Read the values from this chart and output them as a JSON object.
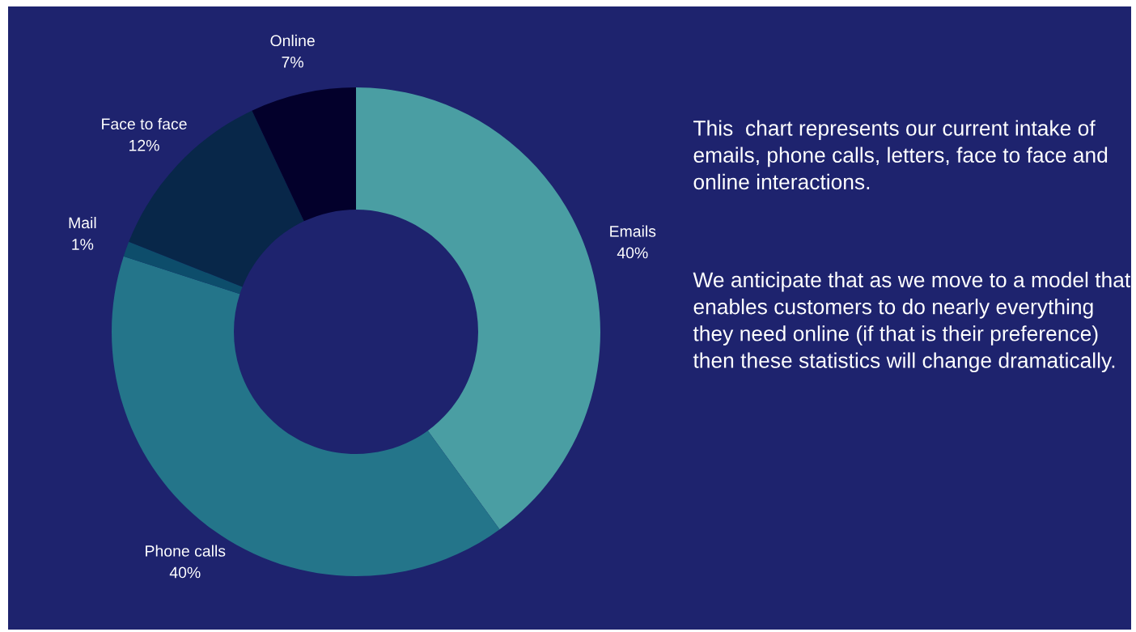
{
  "chart_data": {
    "type": "donut",
    "categories": [
      "Emails",
      "Phone calls",
      "Mail",
      "Face to face",
      "Online"
    ],
    "values": [
      40,
      40,
      1,
      12,
      7
    ],
    "colors": [
      "#4a9ea3",
      "#24758a",
      "#0d4d6b",
      "#082749",
      "#03002b"
    ],
    "data_labels": true,
    "value_labels": [
      "40%",
      "40%",
      "1%",
      "12%",
      "7%"
    ],
    "legend": false,
    "annotations": [
      "This  chart represents our current intake of emails, phone calls, letters, face to face and online interactions.",
      "We anticipate that as we move to a model that enables customers to do nearly everything they need online (if that is their preference) then these statistics will change dramatically."
    ]
  }
}
